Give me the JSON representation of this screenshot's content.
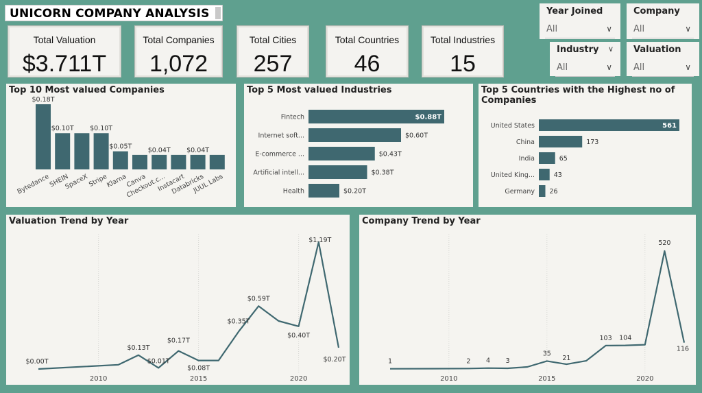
{
  "title": "UNICORN COMPANY ANALYSIS",
  "cards": [
    {
      "label": "Total Valuation",
      "value": "$3.711T"
    },
    {
      "label": "Total Companies",
      "value": "1,072"
    },
    {
      "label": "Total Cities",
      "value": "257"
    },
    {
      "label": "Total Countries",
      "value": "46"
    },
    {
      "label": "Total Industries",
      "value": "15"
    }
  ],
  "slicers": [
    {
      "title": "Year Joined",
      "value": "All"
    },
    {
      "title": "Company",
      "value": "All"
    },
    {
      "title": "Industry",
      "value": "All"
    },
    {
      "title": "Valuation",
      "value": "All"
    }
  ],
  "icons": {
    "dropdown": "chevron-down-icon"
  },
  "colors": {
    "background": "#5fa08f",
    "bar": "#3f6870",
    "panel": "#f5f4f0"
  },
  "chart_data": [
    {
      "type": "bar",
      "title": "Top 10 Most valued Companies",
      "categories": [
        "Bytedance",
        "SHEIN",
        "SpaceX",
        "Stripe",
        "Klarna",
        "Canva",
        "Checkout.c...",
        "Instacart",
        "Databricks",
        "JUUL Labs"
      ],
      "values": [
        0.18,
        0.1,
        0.1,
        0.1,
        0.05,
        0.04,
        0.04,
        0.04,
        0.04,
        0.04
      ],
      "labels": [
        "$0.18T",
        "$0.10T",
        "",
        "$0.10T",
        "$0.05T",
        "",
        "$0.04T",
        "",
        "$0.04T",
        ""
      ]
    },
    {
      "type": "bar",
      "orientation": "horizontal",
      "title": "Top 5 Most valued Industries",
      "categories": [
        "Fintech",
        "Internet soft...",
        "E-commerce ...",
        "Artificial intell...",
        "Health"
      ],
      "values": [
        0.88,
        0.6,
        0.43,
        0.38,
        0.2
      ],
      "labels": [
        "$0.88T",
        "$0.60T",
        "$0.43T",
        "$0.38T",
        "$0.20T"
      ]
    },
    {
      "type": "bar",
      "orientation": "horizontal",
      "title": "Top 5 Countries with the Highest no of Companies",
      "categories": [
        "United States",
        "China",
        "India",
        "United King...",
        "Germany"
      ],
      "values": [
        561,
        173,
        65,
        43,
        26
      ],
      "labels": [
        "561",
        "173",
        "65",
        "43",
        "26"
      ]
    },
    {
      "type": "line",
      "title": "Valuation Trend by Year",
      "x": [
        2007,
        2011,
        2012,
        2013,
        2014,
        2015,
        2016,
        2017,
        2018,
        2019,
        2020,
        2021,
        2022
      ],
      "values": [
        0.0,
        0.04,
        0.13,
        0.01,
        0.17,
        0.08,
        0.08,
        0.35,
        0.59,
        0.45,
        0.4,
        1.19,
        0.2
      ],
      "labels": [
        "$0.00T",
        "",
        "$0.13T",
        "$0.01T",
        "$0.17T",
        "$0.08T",
        "",
        "$0.35T",
        "$0.59T",
        "",
        "$0.40T",
        "$1.19T",
        "$0.20T"
      ],
      "xticks": [
        "2010",
        "2015",
        "2020"
      ]
    },
    {
      "type": "line",
      "title": "Company Trend by Year",
      "x": [
        2007,
        2011,
        2012,
        2013,
        2014,
        2015,
        2016,
        2017,
        2018,
        2019,
        2020,
        2021,
        2022
      ],
      "values": [
        1,
        2,
        4,
        3,
        9,
        35,
        21,
        36,
        103,
        104,
        107,
        520,
        116
      ],
      "labels": [
        "1",
        "2",
        "4",
        "3",
        "",
        "35",
        "21",
        "",
        "103",
        "104",
        "",
        "520",
        "116"
      ],
      "xticks": [
        "2010",
        "2015",
        "2020"
      ]
    }
  ]
}
